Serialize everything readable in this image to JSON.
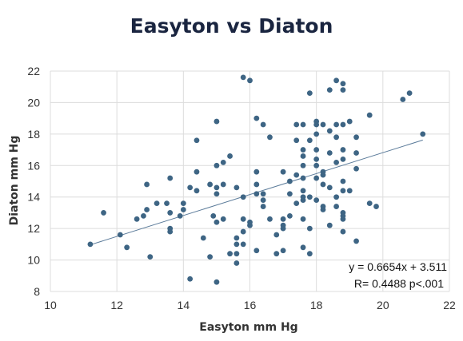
{
  "chart_data": {
    "type": "scatter",
    "title": "Easyton vs Diaton",
    "xlabel": "Easyton mm Hg",
    "ylabel": "Diaton mm Hg",
    "xlim": [
      10,
      22
    ],
    "ylim": [
      8,
      22
    ],
    "xticks": [
      10,
      12,
      14,
      16,
      18,
      20,
      22
    ],
    "yticks": [
      8,
      10,
      12,
      14,
      16,
      18,
      20,
      22
    ],
    "grid": true,
    "marker_color": "#3e6584",
    "trendline_color": "#5b7b9a",
    "trendline": {
      "slope": 0.6654,
      "intercept": 3.511,
      "x_range": [
        11.2,
        21.2
      ]
    },
    "annotations": [
      "y = 0.6654x + 3.511",
      "R= 0.4488  p<.001"
    ],
    "points": [
      [
        11.2,
        11.0
      ],
      [
        11.6,
        13.0
      ],
      [
        12.1,
        11.6
      ],
      [
        12.3,
        10.8
      ],
      [
        12.6,
        12.6
      ],
      [
        12.8,
        12.8
      ],
      [
        12.9,
        13.2
      ],
      [
        12.9,
        14.8
      ],
      [
        13.0,
        10.2
      ],
      [
        13.2,
        13.6
      ],
      [
        13.5,
        13.6
      ],
      [
        13.6,
        11.8
      ],
      [
        13.6,
        12.0
      ],
      [
        13.6,
        13.0
      ],
      [
        13.6,
        15.2
      ],
      [
        13.9,
        12.8
      ],
      [
        14.0,
        13.2
      ],
      [
        14.0,
        13.6
      ],
      [
        14.2,
        8.8
      ],
      [
        14.2,
        14.6
      ],
      [
        14.4,
        14.4
      ],
      [
        14.4,
        15.6
      ],
      [
        14.4,
        17.6
      ],
      [
        14.6,
        11.4
      ],
      [
        14.8,
        10.2
      ],
      [
        14.8,
        14.8
      ],
      [
        14.9,
        12.8
      ],
      [
        15.0,
        8.6
      ],
      [
        15.0,
        12.4
      ],
      [
        15.0,
        14.2
      ],
      [
        15.0,
        14.6
      ],
      [
        15.0,
        16.0
      ],
      [
        15.0,
        18.8
      ],
      [
        15.2,
        12.6
      ],
      [
        15.2,
        14.8
      ],
      [
        15.2,
        16.2
      ],
      [
        15.4,
        10.4
      ],
      [
        15.4,
        16.6
      ],
      [
        15.6,
        9.8
      ],
      [
        15.6,
        10.4
      ],
      [
        15.6,
        11.0
      ],
      [
        15.6,
        11.4
      ],
      [
        15.6,
        14.6
      ],
      [
        15.8,
        11.0
      ],
      [
        15.8,
        11.8
      ],
      [
        15.8,
        12.6
      ],
      [
        15.8,
        14.0
      ],
      [
        15.8,
        21.6
      ],
      [
        16.0,
        12.2
      ],
      [
        16.0,
        12.4
      ],
      [
        16.0,
        21.4
      ],
      [
        16.2,
        10.6
      ],
      [
        16.2,
        14.2
      ],
      [
        16.2,
        14.8
      ],
      [
        16.2,
        15.6
      ],
      [
        16.2,
        19.0
      ],
      [
        16.4,
        13.4
      ],
      [
        16.4,
        13.8
      ],
      [
        16.4,
        14.2
      ],
      [
        16.4,
        18.6
      ],
      [
        16.6,
        12.6
      ],
      [
        16.6,
        17.8
      ],
      [
        16.8,
        11.6
      ],
      [
        16.8,
        10.4
      ],
      [
        17.0,
        10.6
      ],
      [
        17.0,
        12.0
      ],
      [
        17.0,
        12.2
      ],
      [
        17.0,
        12.6
      ],
      [
        17.0,
        15.6
      ],
      [
        17.2,
        12.8
      ],
      [
        17.2,
        14.2
      ],
      [
        17.2,
        15.0
      ],
      [
        17.4,
        13.6
      ],
      [
        17.4,
        15.4
      ],
      [
        17.4,
        17.6
      ],
      [
        17.4,
        18.6
      ],
      [
        17.6,
        10.8
      ],
      [
        17.6,
        12.6
      ],
      [
        17.6,
        13.8
      ],
      [
        17.6,
        14.0
      ],
      [
        17.6,
        14.4
      ],
      [
        17.6,
        15.2
      ],
      [
        17.6,
        16.0
      ],
      [
        17.6,
        16.6
      ],
      [
        17.6,
        17.0
      ],
      [
        17.6,
        18.6
      ],
      [
        17.8,
        10.4
      ],
      [
        17.8,
        12.0
      ],
      [
        17.8,
        14.0
      ],
      [
        17.8,
        17.6
      ],
      [
        17.8,
        20.6
      ],
      [
        18.0,
        13.8
      ],
      [
        18.0,
        15.2
      ],
      [
        18.0,
        16.0
      ],
      [
        18.0,
        16.4
      ],
      [
        18.0,
        17.0
      ],
      [
        18.0,
        18.0
      ],
      [
        18.0,
        18.6
      ],
      [
        18.0,
        18.8
      ],
      [
        18.2,
        13.2
      ],
      [
        18.2,
        13.4
      ],
      [
        18.2,
        14.8
      ],
      [
        18.2,
        15.4
      ],
      [
        18.2,
        15.6
      ],
      [
        18.2,
        18.6
      ],
      [
        18.4,
        12.2
      ],
      [
        18.4,
        14.6
      ],
      [
        18.4,
        16.8
      ],
      [
        18.4,
        18.2
      ],
      [
        18.4,
        20.8
      ],
      [
        18.6,
        13.4
      ],
      [
        18.6,
        14.0
      ],
      [
        18.6,
        16.2
      ],
      [
        18.6,
        17.8
      ],
      [
        18.6,
        18.6
      ],
      [
        18.6,
        21.4
      ],
      [
        18.8,
        11.8
      ],
      [
        18.8,
        12.6
      ],
      [
        18.8,
        12.8
      ],
      [
        18.8,
        13.0
      ],
      [
        18.8,
        14.4
      ],
      [
        18.8,
        15.0
      ],
      [
        18.8,
        16.4
      ],
      [
        18.8,
        17.0
      ],
      [
        18.8,
        18.6
      ],
      [
        18.8,
        20.8
      ],
      [
        18.8,
        21.2
      ],
      [
        19.0,
        14.4
      ],
      [
        19.0,
        18.8
      ],
      [
        19.2,
        11.2
      ],
      [
        19.2,
        15.8
      ],
      [
        19.2,
        16.8
      ],
      [
        19.2,
        17.8
      ],
      [
        19.6,
        13.6
      ],
      [
        19.6,
        19.2
      ],
      [
        19.8,
        13.4
      ],
      [
        20.6,
        20.2
      ],
      [
        20.8,
        20.6
      ],
      [
        21.2,
        18.0
      ]
    ]
  }
}
